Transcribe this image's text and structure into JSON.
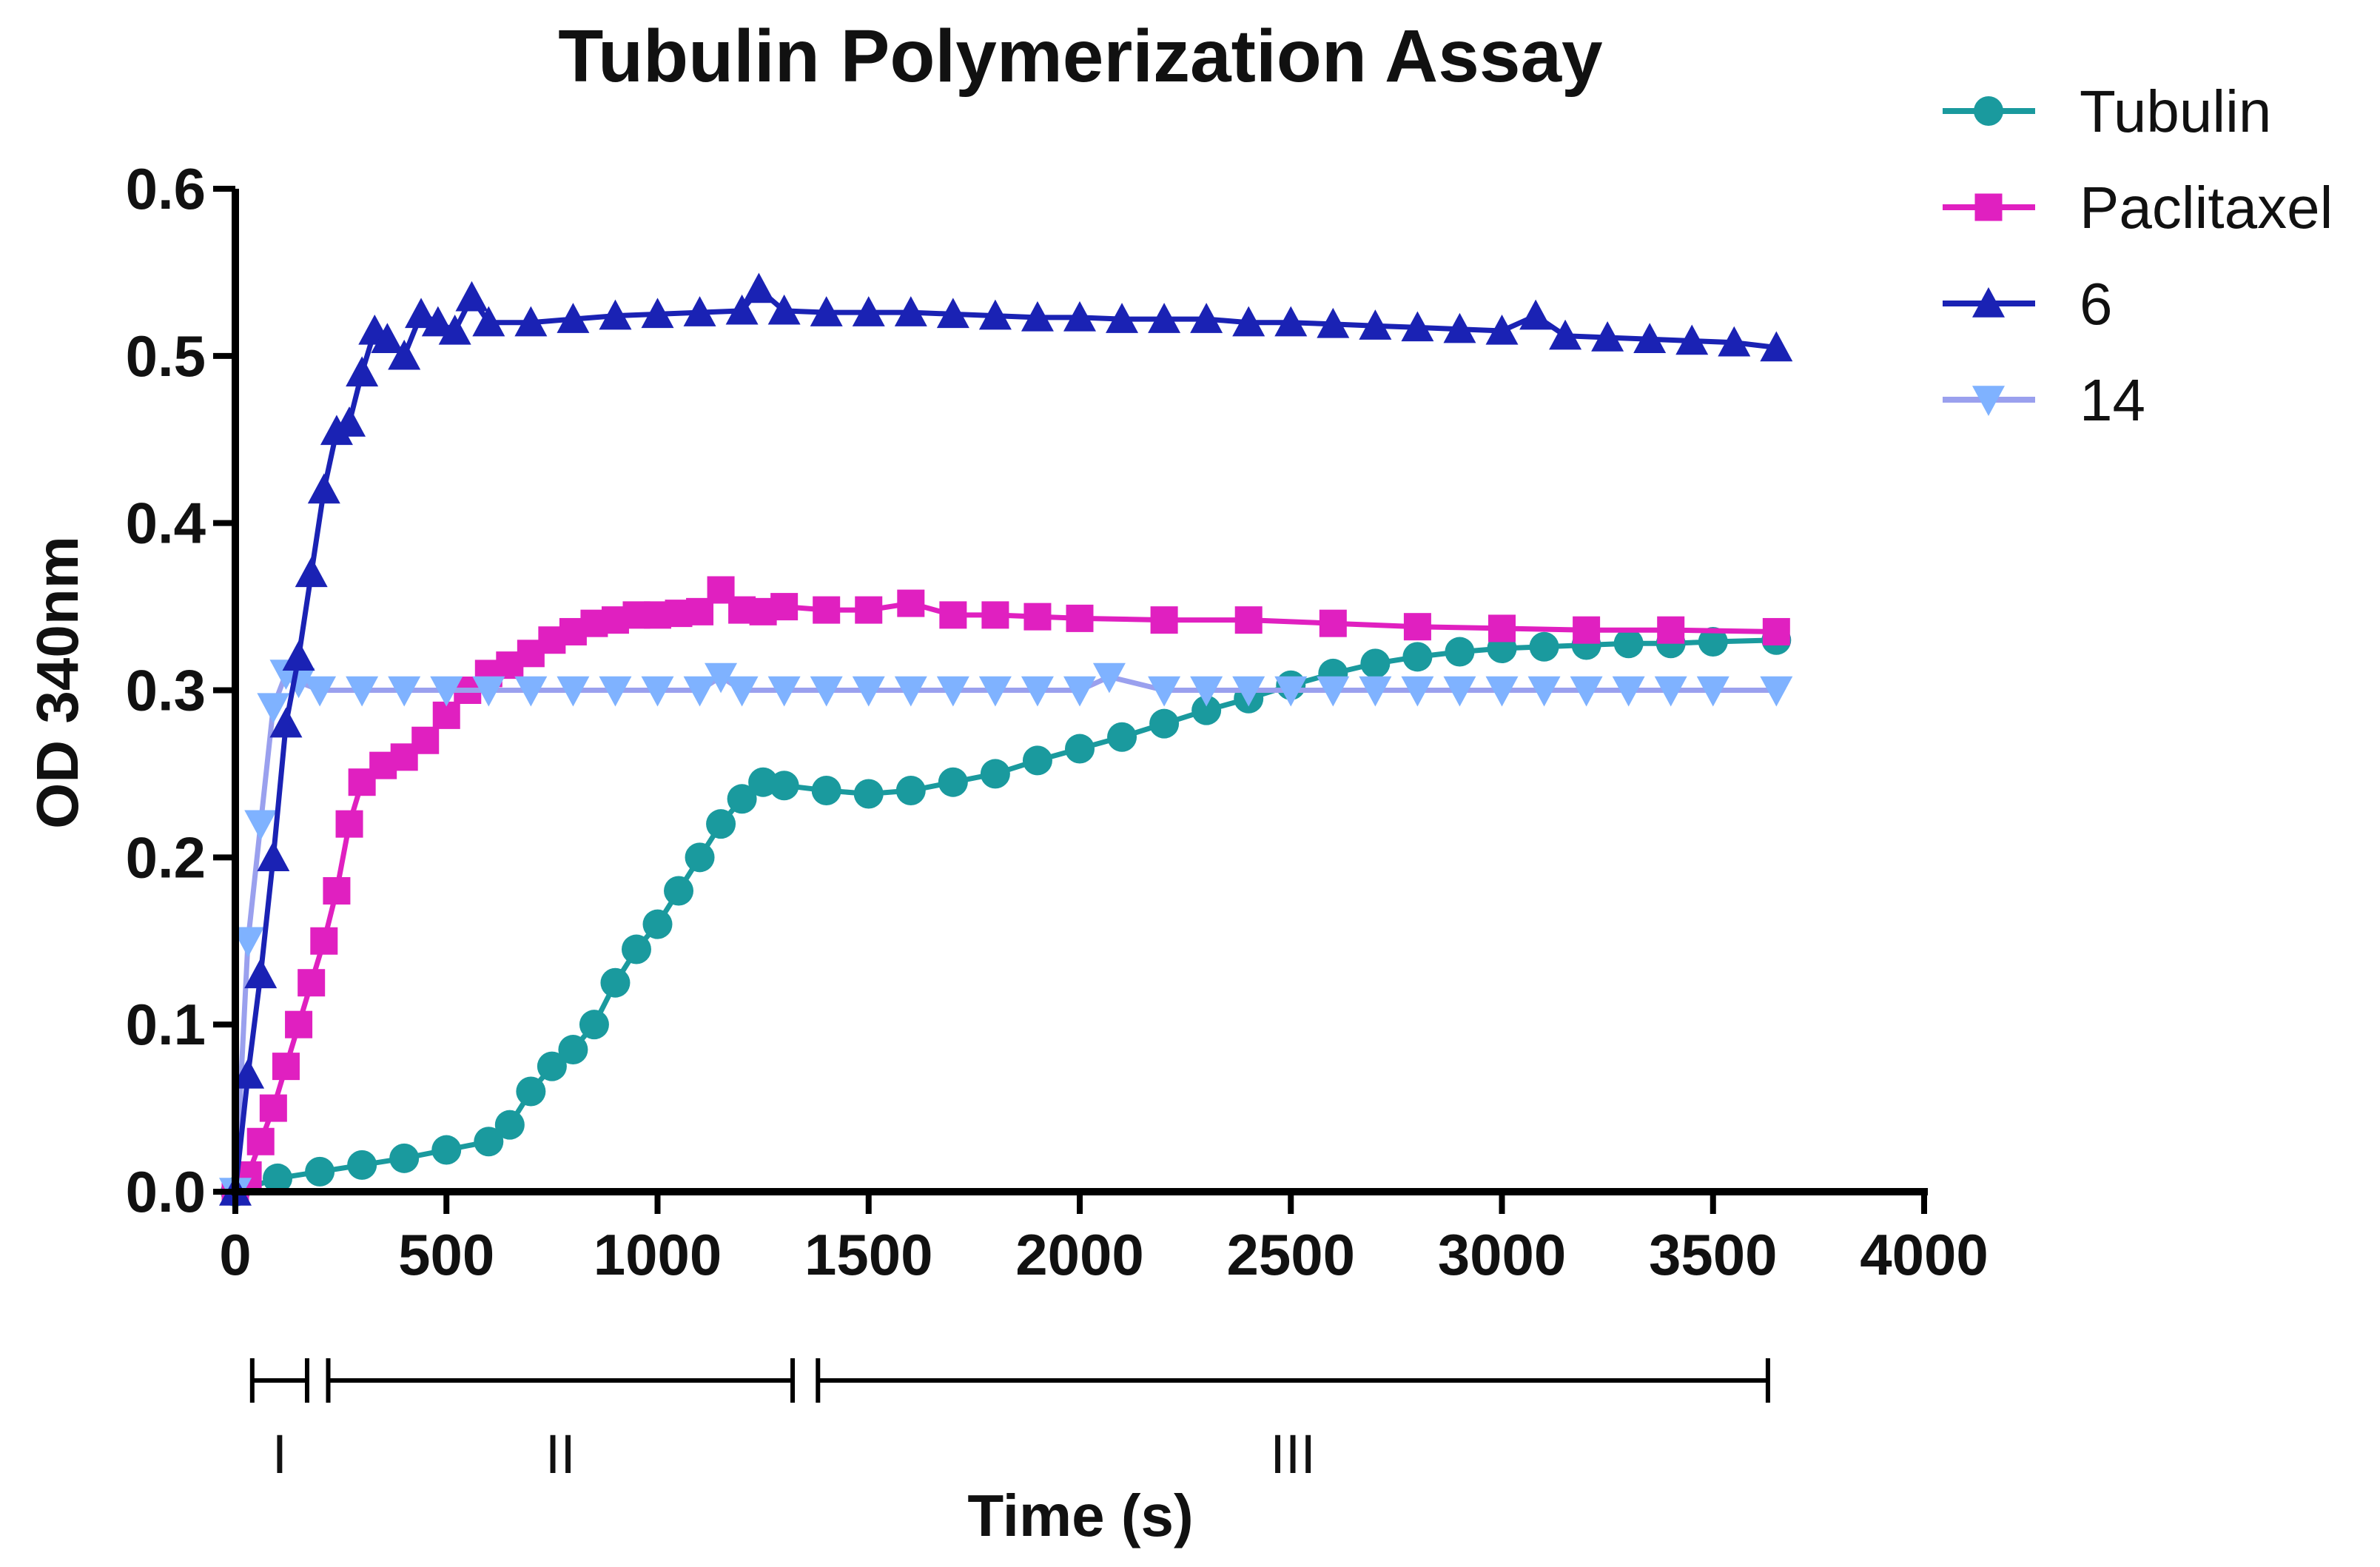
{
  "chart_data": {
    "type": "line",
    "title": "Tubulin Polymerization Assay",
    "xlabel": "Time (s)",
    "ylabel": "OD 340nm",
    "xlim": [
      0,
      4000
    ],
    "ylim": [
      0,
      0.6
    ],
    "xticks": [
      0,
      500,
      1000,
      1500,
      2000,
      2500,
      3000,
      3500,
      4000
    ],
    "xtick_labels": [
      "0",
      "500",
      "1000",
      "1500",
      "2000",
      "2500",
      "3000",
      "3500",
      "4000"
    ],
    "yticks": [
      0,
      0.1,
      0.2,
      0.3,
      0.4,
      0.5,
      0.6
    ],
    "ytick_labels": [
      "0.0",
      "0.1",
      "0.2",
      "0.3",
      "0.4",
      "0.5",
      "0.6"
    ],
    "grid": false,
    "legend_position": "top-right",
    "series": [
      {
        "name": "Tubulin",
        "color": "#1a9a9e",
        "marker": "circle",
        "x": [
          0,
          100,
          200,
          300,
          400,
          500,
          600,
          650,
          700,
          750,
          800,
          850,
          900,
          950,
          1000,
          1050,
          1100,
          1150,
          1200,
          1250,
          1300,
          1400,
          1500,
          1600,
          1700,
          1800,
          1900,
          2000,
          2100,
          2200,
          2300,
          2400,
          2500,
          2600,
          2700,
          2800,
          2900,
          3000,
          3100,
          3200,
          3300,
          3400,
          3500,
          3650
        ],
        "y": [
          0.0,
          0.008,
          0.012,
          0.016,
          0.02,
          0.025,
          0.03,
          0.04,
          0.06,
          0.075,
          0.085,
          0.1,
          0.125,
          0.145,
          0.16,
          0.18,
          0.2,
          0.22,
          0.235,
          0.245,
          0.243,
          0.24,
          0.238,
          0.24,
          0.245,
          0.25,
          0.258,
          0.265,
          0.272,
          0.28,
          0.288,
          0.295,
          0.303,
          0.31,
          0.316,
          0.32,
          0.323,
          0.325,
          0.326,
          0.327,
          0.328,
          0.328,
          0.329,
          0.33
        ]
      },
      {
        "name": "Paclitaxel",
        "color": "#e020c0",
        "marker": "square",
        "x": [
          0,
          30,
          60,
          90,
          120,
          150,
          180,
          210,
          240,
          270,
          300,
          350,
          400,
          450,
          500,
          550,
          600,
          650,
          700,
          750,
          800,
          850,
          900,
          950,
          1000,
          1050,
          1100,
          1150,
          1200,
          1250,
          1300,
          1400,
          1500,
          1600,
          1700,
          1800,
          1900,
          2000,
          2200,
          2400,
          2600,
          2800,
          3000,
          3200,
          3400,
          3650
        ],
        "y": [
          0.0,
          0.01,
          0.03,
          0.05,
          0.075,
          0.1,
          0.125,
          0.15,
          0.18,
          0.22,
          0.245,
          0.255,
          0.26,
          0.27,
          0.285,
          0.3,
          0.31,
          0.315,
          0.322,
          0.33,
          0.335,
          0.34,
          0.342,
          0.345,
          0.345,
          0.346,
          0.347,
          0.36,
          0.348,
          0.347,
          0.35,
          0.348,
          0.348,
          0.352,
          0.345,
          0.345,
          0.344,
          0.343,
          0.342,
          0.342,
          0.34,
          0.338,
          0.337,
          0.336,
          0.336,
          0.335
        ]
      },
      {
        "name": "6",
        "color": "#1a22b4",
        "marker": "triangle-up",
        "x": [
          0,
          30,
          60,
          90,
          120,
          150,
          180,
          210,
          240,
          270,
          300,
          330,
          360,
          400,
          440,
          480,
          520,
          560,
          600,
          700,
          800,
          900,
          1000,
          1100,
          1200,
          1240,
          1300,
          1400,
          1500,
          1600,
          1700,
          1800,
          1900,
          2000,
          2100,
          2200,
          2300,
          2400,
          2500,
          2600,
          2700,
          2800,
          2900,
          3000,
          3080,
          3150,
          3250,
          3350,
          3450,
          3550,
          3650
        ],
        "y": [
          0.0,
          0.07,
          0.13,
          0.2,
          0.28,
          0.32,
          0.37,
          0.42,
          0.455,
          0.46,
          0.49,
          0.515,
          0.51,
          0.5,
          0.525,
          0.52,
          0.515,
          0.535,
          0.52,
          0.52,
          0.522,
          0.524,
          0.525,
          0.526,
          0.527,
          0.54,
          0.527,
          0.526,
          0.526,
          0.526,
          0.525,
          0.524,
          0.523,
          0.523,
          0.522,
          0.522,
          0.522,
          0.52,
          0.52,
          0.519,
          0.518,
          0.517,
          0.516,
          0.515,
          0.524,
          0.512,
          0.511,
          0.51,
          0.509,
          0.508,
          0.505
        ]
      },
      {
        "name": "14",
        "color": "#7fb2ff",
        "line_color": "#9aa0ee",
        "marker": "triangle-down",
        "x": [
          0,
          30,
          60,
          90,
          120,
          150,
          200,
          300,
          400,
          500,
          600,
          700,
          800,
          900,
          1000,
          1100,
          1150,
          1200,
          1300,
          1400,
          1500,
          1600,
          1700,
          1800,
          1900,
          2000,
          2070,
          2200,
          2300,
          2400,
          2500,
          2600,
          2700,
          2800,
          2900,
          3000,
          3100,
          3200,
          3300,
          3400,
          3500,
          3650
        ],
        "y": [
          0.0,
          0.15,
          0.22,
          0.29,
          0.31,
          0.305,
          0.3,
          0.3,
          0.3,
          0.3,
          0.3,
          0.3,
          0.3,
          0.3,
          0.3,
          0.3,
          0.308,
          0.3,
          0.3,
          0.3,
          0.3,
          0.3,
          0.3,
          0.3,
          0.3,
          0.3,
          0.308,
          0.3,
          0.3,
          0.3,
          0.3,
          0.3,
          0.3,
          0.3,
          0.3,
          0.3,
          0.3,
          0.3,
          0.3,
          0.3,
          0.3,
          0.3
        ]
      }
    ],
    "phases": [
      {
        "label": "I",
        "start": 40,
        "end": 170
      },
      {
        "label": "II",
        "start": 220,
        "end": 1320
      },
      {
        "label": "III",
        "start": 1380,
        "end": 3630
      }
    ]
  }
}
